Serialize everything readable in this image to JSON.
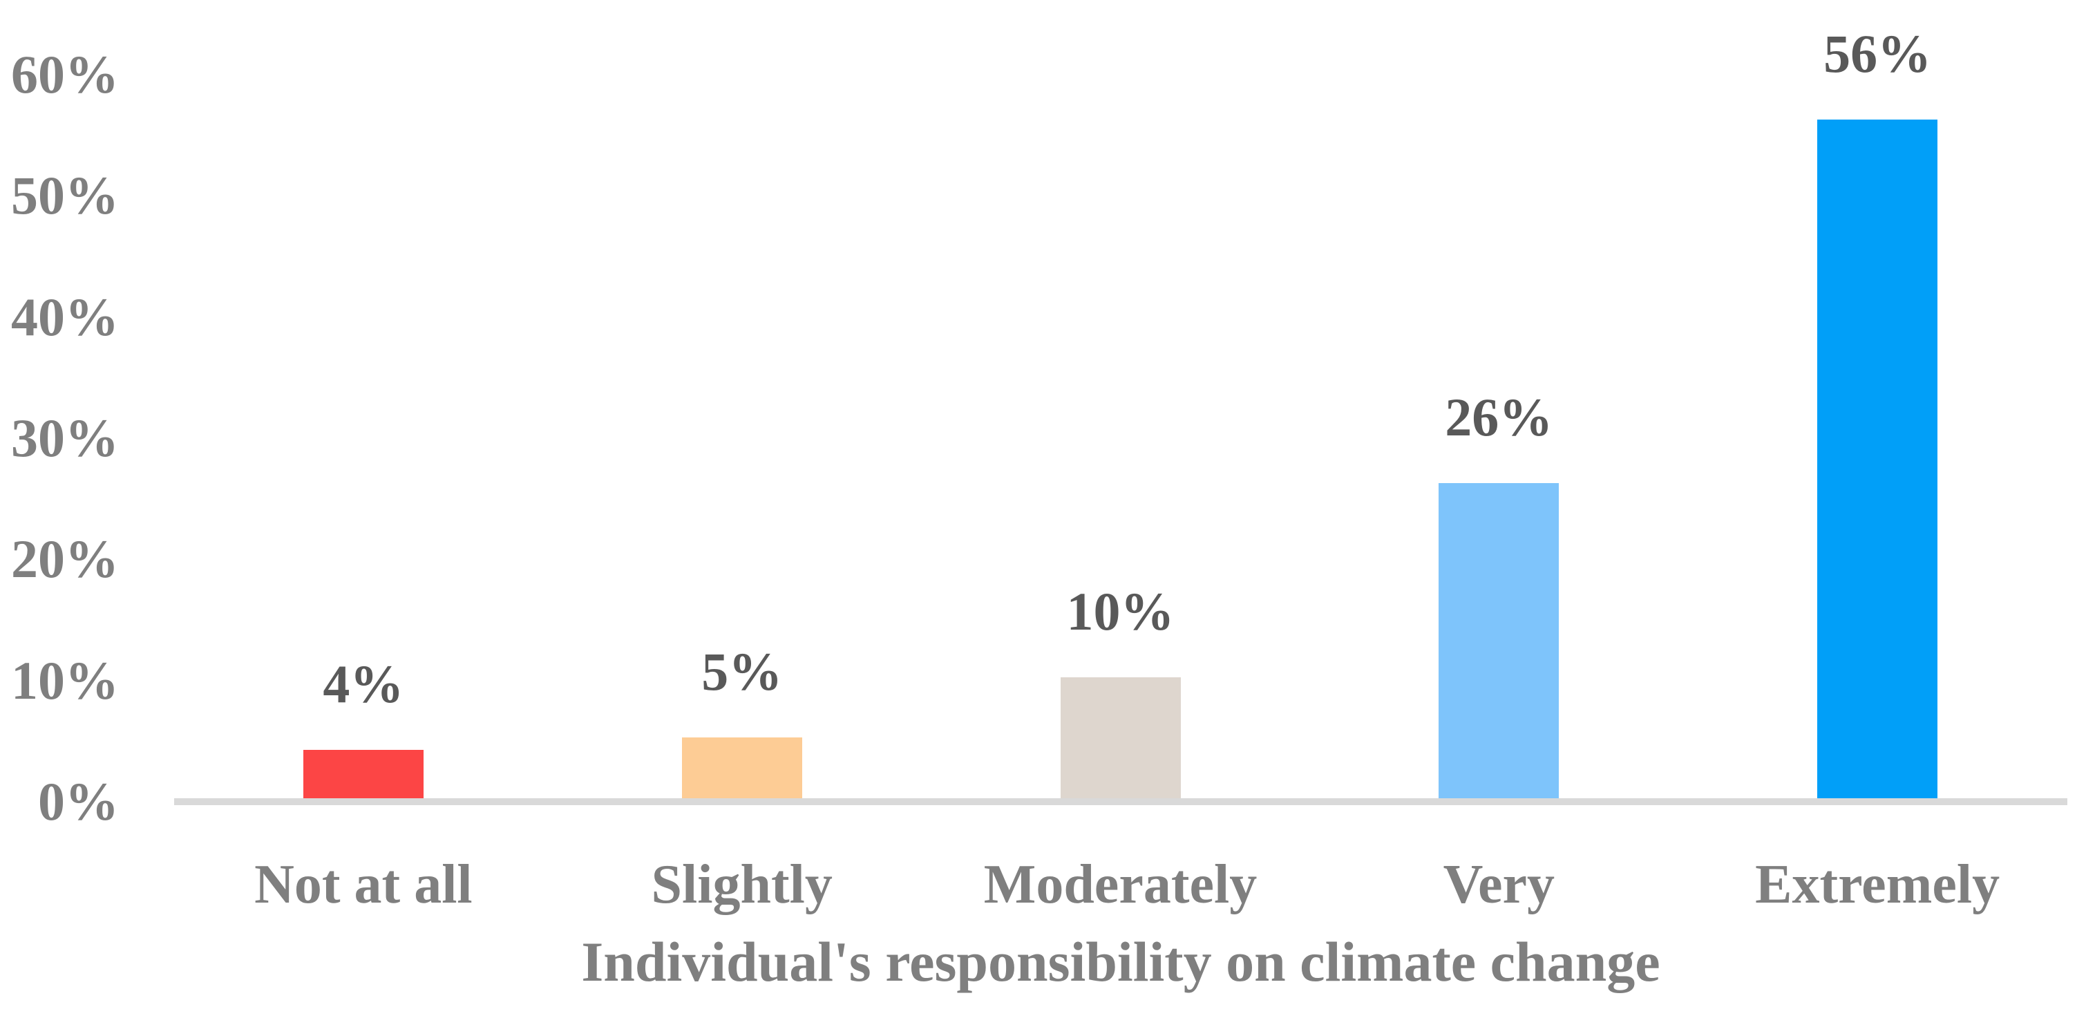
{
  "chart_data": {
    "type": "bar",
    "title": "",
    "xlabel": "Individual's responsibility on climate change",
    "ylabel": "",
    "categories": [
      "Not at all",
      "Slightly",
      "Moderately",
      "Very",
      "Extremely"
    ],
    "values": [
      4,
      5,
      10,
      26,
      56
    ],
    "data_labels": [
      "4%",
      "5%",
      "10%",
      "26%",
      "56%"
    ],
    "yticks": [
      {
        "value": 0,
        "label": "0%"
      },
      {
        "value": 10,
        "label": "10%"
      },
      {
        "value": 20,
        "label": "20%"
      },
      {
        "value": 30,
        "label": "30%"
      },
      {
        "value": 40,
        "label": "40%"
      },
      {
        "value": 50,
        "label": "50%"
      },
      {
        "value": 60,
        "label": "60%"
      }
    ],
    "ylim": [
      0,
      60
    ],
    "grid": false,
    "legend": false,
    "bar_colors": [
      "#fc4545",
      "#fdcc95",
      "#ded6ce",
      "#7ec4fb",
      "#019ff8"
    ],
    "axis_line_color": "#d9d9d9",
    "axis_text_color": "#7f7f7f",
    "data_label_color": "#595959"
  }
}
